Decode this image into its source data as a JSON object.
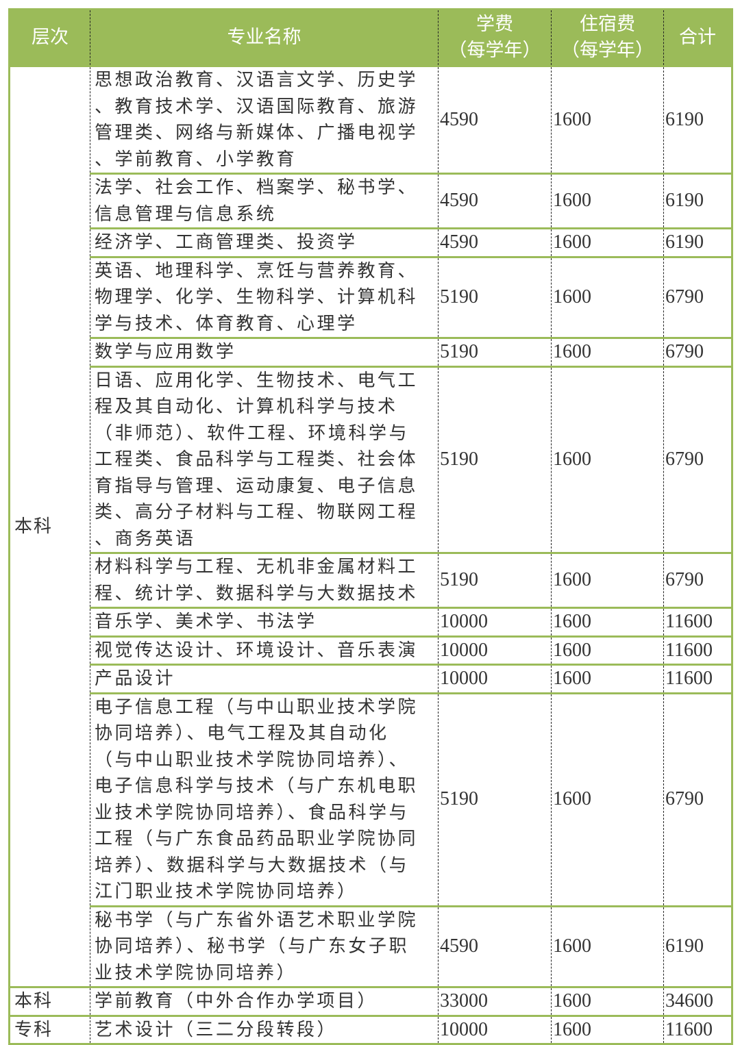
{
  "header": {
    "level": "层次",
    "major": "专业名称",
    "tuition": [
      "学费",
      "（每学年）"
    ],
    "dorm": [
      "住宿费",
      "（每学年）"
    ],
    "total": "合计"
  },
  "colors": {
    "header_bg": "#9bbb59",
    "border": "#9bbb59"
  },
  "groups": [
    {
      "level": "本科",
      "rows": [
        {
          "lines": [
            "思想政治教育、汉语言文学、历史学",
            "、教育技术学、汉语国际教育、旅游",
            "管理类、网络与新媒体、广播电视学",
            "、学前教育、小学教育"
          ],
          "tuition": "4590",
          "dorm": "1600",
          "total": "6190"
        },
        {
          "lines": [
            "法学、社会工作、档案学、秘书学、",
            "信息管理与信息系统"
          ],
          "tuition": "4590",
          "dorm": "1600",
          "total": "6190"
        },
        {
          "lines": [
            "经济学、工商管理类、投资学"
          ],
          "tuition": "4590",
          "dorm": "1600",
          "total": "6190"
        },
        {
          "lines": [
            "英语、地理科学、烹饪与营养教育、",
            "物理学、化学、生物科学、计算机科",
            "学与技术、体育教育、心理学"
          ],
          "tuition": "5190",
          "dorm": "1600",
          "total": "6790"
        },
        {
          "lines": [
            "数学与应用数学"
          ],
          "tuition": "5190",
          "dorm": "1600",
          "total": "6790"
        },
        {
          "lines": [
            "日语、应用化学、生物技术、电气工",
            "程及其自动化、计算机科学与技术",
            "（非师范）、软件工程、环境科学与",
            "工程类、食品科学与工程类、社会体",
            "育指导与管理、运动康复、电子信息",
            "类、高分子材料与工程、物联网工程",
            "、商务英语"
          ],
          "tuition": "5190",
          "dorm": "1600",
          "total": "6790"
        },
        {
          "lines": [
            "材料科学与工程、无机非金属材料工",
            "程、统计学、数据科学与大数据技术"
          ],
          "tuition": "5190",
          "dorm": "1600",
          "total": "6790"
        },
        {
          "lines": [
            "音乐学、美术学、书法学"
          ],
          "tuition": "10000",
          "dorm": "1600",
          "total": "11600"
        },
        {
          "lines": [
            "视觉传达设计、环境设计、音乐表演"
          ],
          "tuition": "10000",
          "dorm": "1600",
          "total": "11600"
        },
        {
          "lines": [
            "产品设计"
          ],
          "tuition": "10000",
          "dorm": "1600",
          "total": "11600"
        },
        {
          "lines": [
            "电子信息工程（与中山职业技术学院",
            "协同培养）、电气工程及其自动化",
            "（与中山职业技术学院协同培养）、",
            "电子信息科学与技术（与广东机电职",
            "业技术学院协同培养）、食品科学与",
            "工程（与广东食品药品职业学院协同",
            "培养）、数据科学与大数据技术（与",
            "江门职业技术学院协同培养）"
          ],
          "tuition": "5190",
          "dorm": "1600",
          "total": "6790"
        },
        {
          "lines": [
            "秘书学（与广东省外语艺术职业学院",
            "协同培养）、秘书学（与广东女子职",
            "业技术学院协同培养）"
          ],
          "tuition": "4590",
          "dorm": "1600",
          "total": "6190"
        }
      ]
    },
    {
      "level": "本科",
      "rows": [
        {
          "lines": [
            "学前教育（中外合作办学项目）"
          ],
          "tuition": "33000",
          "dorm": "1600",
          "total": "34600"
        }
      ]
    },
    {
      "level": "专科",
      "rows": [
        {
          "lines": [
            "艺术设计（三二分段转段）"
          ],
          "tuition": "10000",
          "dorm": "1600",
          "total": "11600"
        }
      ]
    }
  ]
}
